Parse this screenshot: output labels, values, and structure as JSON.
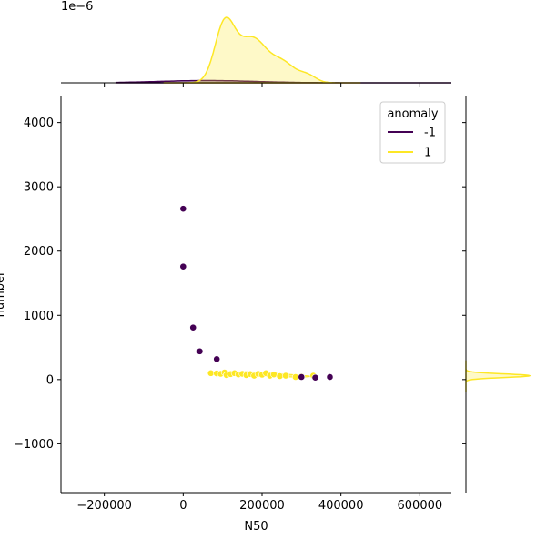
{
  "chart_data": {
    "type": "scatter",
    "title": "",
    "xlabel": "N50",
    "ylabel": "number",
    "xlim": [
      -310000,
      680000
    ],
    "ylim": [
      -1760,
      4420
    ],
    "x_ticks": [
      -200000,
      0,
      200000,
      400000,
      600000
    ],
    "x_tick_labels": [
      "−200000",
      "0",
      "200000",
      "400000",
      "600000"
    ],
    "y_ticks": [
      -1000,
      0,
      1000,
      2000,
      3000,
      4000
    ],
    "y_tick_labels": [
      "−1000",
      "0",
      "1000",
      "2000",
      "3000",
      "4000"
    ],
    "grid": false,
    "legend": {
      "title": "anomaly",
      "placement": "top-right",
      "entries": [
        {
          "label": "-1",
          "color": "#440154"
        },
        {
          "label": "1",
          "color": "#fde725"
        }
      ]
    },
    "marginal_x_offset_text": "1e−6",
    "series": [
      {
        "name": "-1",
        "color": "#440154",
        "x": [
          0,
          0,
          25000,
          40000,
          42000,
          85000,
          300000,
          335000,
          372000
        ],
        "y": [
          2660,
          1760,
          810,
          440,
          440,
          320,
          40,
          30,
          40
        ]
      },
      {
        "name": "1",
        "color": "#fde725",
        "x": [
          70000,
          85000,
          95000,
          105000,
          110000,
          120000,
          130000,
          140000,
          150000,
          160000,
          170000,
          180000,
          190000,
          200000,
          210000,
          220000,
          230000,
          245000,
          260000,
          285000,
          300000,
          330000
        ],
        "y": [
          100,
          95,
          90,
          110,
          70,
          85,
          100,
          80,
          90,
          70,
          85,
          60,
          90,
          75,
          100,
          60,
          80,
          55,
          60,
          40,
          50,
          60
        ]
      }
    ]
  }
}
